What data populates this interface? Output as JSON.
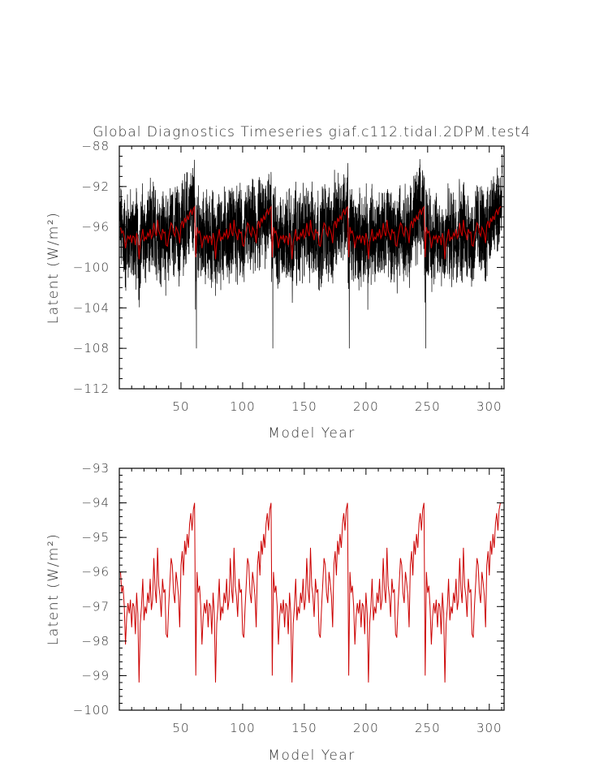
{
  "chart_data": [
    {
      "type": "line",
      "title": "Global Diagnostics Timeseries giaf.c112.tidal.2DPM.test4",
      "xlabel": "Model Year",
      "ylabel": "Latent (W/m²)",
      "xlim": [
        0,
        312
      ],
      "ylim": [
        -112,
        -88
      ],
      "xticks": [
        50,
        100,
        150,
        200,
        250,
        300
      ],
      "yticks": [
        -88,
        -92,
        -96,
        -100,
        -104,
        -108,
        -112
      ],
      "series": [
        {
          "color": "#000000",
          "resolution": "monthly"
        },
        {
          "color": "#cc0000",
          "resolution": "annual mean"
        }
      ]
    },
    {
      "type": "line",
      "title": "",
      "xlabel": "Model Year",
      "ylabel": "Latent (W/m²)",
      "xlim": [
        0,
        312
      ],
      "ylim": [
        -100,
        -93
      ],
      "xticks": [
        50,
        100,
        150,
        200,
        250,
        300
      ],
      "yticks": [
        -93,
        -94,
        -95,
        -96,
        -97,
        -98,
        -99,
        -100
      ],
      "series": [
        {
          "color": "#cc0000",
          "resolution": "annual mean"
        }
      ],
      "cycle_years": 62,
      "cycle_profile": [
        -96.0,
        -96.6,
        -96.4,
        -97.0,
        -98.1,
        -97.3,
        -96.9,
        -97.2,
        -96.8,
        -97.6,
        -96.9,
        -97.0,
        -97.8,
        -96.6,
        -97.2,
        -99.2,
        -97.5,
        -97.0,
        -96.2,
        -97.4,
        -97.0,
        -97.2,
        -96.6,
        -96.9,
        -96.2,
        -97.1,
        -96.8,
        -95.6,
        -96.5,
        -96.9,
        -95.3,
        -96.4,
        -96.7,
        -97.3,
        -96.2,
        -96.6,
        -96.5,
        -97.8,
        -97.9,
        -97.0,
        -96.3,
        -95.6,
        -95.8,
        -96.6,
        -96.9,
        -96.0,
        -96.3,
        -96.7,
        -97.6,
        -95.8,
        -95.4,
        -96.1,
        -95.1,
        -95.5,
        -94.9,
        -95.3,
        -94.6,
        -94.3,
        -94.8,
        -94.2,
        -94.0,
        -99.0
      ],
      "final_value": -94.0
    }
  ]
}
